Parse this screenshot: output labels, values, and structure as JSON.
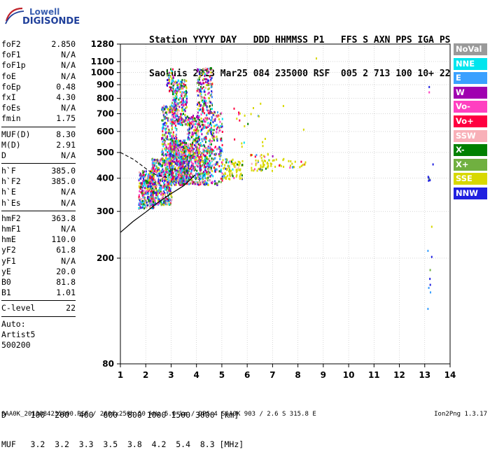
{
  "logo": {
    "line1": "Lowell",
    "line2": "DIGISONDE"
  },
  "header": {
    "line1": "Station YYYY DAY   DDD HHMMSS P1   FFS S AXN PPS IGA PS",
    "line2": "SaoLuis 2013 Mar25 084 235000 RSF  005 2 713 100 10+ 22"
  },
  "params": [
    [
      {
        "k": "foF2",
        "v": "2.850"
      },
      {
        "k": "foF1",
        "v": "N/A"
      },
      {
        "k": "foF1p",
        "v": "N/A"
      },
      {
        "k": "foE",
        "v": "N/A"
      },
      {
        "k": "foEp",
        "v": "0.48"
      },
      {
        "k": "fxI",
        "v": "4.30"
      },
      {
        "k": "foEs",
        "v": "N/A"
      },
      {
        "k": "fmin",
        "v": "1.75"
      }
    ],
    [
      {
        "k": "MUF(D)",
        "v": "8.30"
      },
      {
        "k": "M(D)",
        "v": "2.91"
      },
      {
        "k": "D",
        "v": "N/A"
      }
    ],
    [
      {
        "k": "h`F",
        "v": "385.0"
      },
      {
        "k": "h`F2",
        "v": "385.0"
      },
      {
        "k": "h`E",
        "v": "N/A"
      },
      {
        "k": "h`Es",
        "v": "N/A"
      }
    ],
    [
      {
        "k": "hmF2",
        "v": "363.8"
      },
      {
        "k": "hmF1",
        "v": "N/A"
      },
      {
        "k": "hmE",
        "v": "110.0"
      },
      {
        "k": "yF2",
        "v": "61.8"
      },
      {
        "k": "yF1",
        "v": "N/A"
      },
      {
        "k": "yE",
        "v": "20.0"
      },
      {
        "k": "B0",
        "v": "81.8"
      },
      {
        "k": "B1",
        "v": "1.01"
      }
    ],
    [
      {
        "k": "C-level",
        "v": "22"
      }
    ],
    [
      {
        "k": "Auto:",
        "v": ""
      },
      {
        "k": "Artist5",
        "v": ""
      },
      {
        "k": "500200",
        "v": ""
      }
    ]
  ],
  "legend": [
    {
      "label": "NoVal",
      "color": "#9a9a9a"
    },
    {
      "label": "NNE",
      "color": "#00e5ee"
    },
    {
      "label": "E",
      "color": "#3aa0ff"
    },
    {
      "label": "W",
      "color": "#a000b0"
    },
    {
      "label": "Vo-",
      "color": "#ff40c0"
    },
    {
      "label": "Vo+",
      "color": "#ff0040"
    },
    {
      "label": "SSW",
      "color": "#f8b0b8"
    },
    {
      "label": "X-",
      "color": "#008000"
    },
    {
      "label": "X+",
      "color": "#70b040"
    },
    {
      "label": "SSE",
      "color": "#d8d800"
    },
    {
      "label": "NNW",
      "color": "#2020e0"
    }
  ],
  "bottom": {
    "d_line": "D     100  200  400  600  800 1000 1500 3000 [km]",
    "muf_line": "MUF   3.2  3.2  3.3  3.5  3.8  4.2  5.4  8.3 [MHz]"
  },
  "footer": {
    "left": "SAA0K_2013084235000.RSF / 260fx256h 50 kHz 5.0 km / DPS-4 SAA0K 903 / 2.6 S 315.8 E",
    "right": "Ion2Png 1.3.17"
  },
  "chart_data": {
    "type": "scatter",
    "title": "",
    "xlabel": "",
    "ylabel": "",
    "xlim": [
      1,
      14
    ],
    "ylim": [
      80,
      1280
    ],
    "y_scale": "log",
    "x_ticks": [
      1,
      2,
      3,
      4,
      5,
      6,
      7,
      8,
      9,
      10,
      11,
      12,
      13,
      14
    ],
    "y_ticks": [
      80,
      200,
      300,
      400,
      500,
      600,
      700,
      800,
      900,
      1000,
      1100,
      1280
    ],
    "grid": true,
    "legend_position": "right",
    "clusters": [
      {
        "x": [
          1.7,
          2.3
        ],
        "y": [
          310,
          430
        ],
        "n": 320
      },
      {
        "x": [
          2.2,
          3.0
        ],
        "y": [
          320,
          480
        ],
        "n": 500
      },
      {
        "x": [
          2.9,
          3.6
        ],
        "y": [
          380,
          560
        ],
        "n": 500
      },
      {
        "x": [
          3.3,
          4.5
        ],
        "y": [
          380,
          520
        ],
        "n": 450
      },
      {
        "x": [
          2.6,
          3.2
        ],
        "y": [
          450,
          760
        ],
        "n": 260
      },
      {
        "x": [
          3.0,
          3.6
        ],
        "y": [
          640,
          950
        ],
        "n": 260
      },
      {
        "x": [
          3.6,
          4.1
        ],
        "y": [
          480,
          700
        ],
        "n": 180
      },
      {
        "x": [
          4.0,
          4.6
        ],
        "y": [
          500,
          1050
        ],
        "n": 320
      },
      {
        "x": [
          4.5,
          5.0
        ],
        "y": [
          380,
          720
        ],
        "n": 180
      },
      {
        "x": [
          2.8,
          3.1
        ],
        "y": [
          850,
          1040
        ],
        "n": 40
      },
      {
        "x": [
          5.0,
          5.8
        ],
        "y": [
          400,
          480
        ],
        "n": 90
      },
      {
        "x": [
          6.1,
          7.0
        ],
        "y": [
          430,
          500
        ],
        "n": 60
      },
      {
        "x": [
          7.0,
          8.3
        ],
        "y": [
          440,
          480
        ],
        "n": 25
      },
      {
        "x": [
          5.3,
          6.8
        ],
        "y": [
          530,
          760
        ],
        "n": 20
      },
      {
        "x": [
          13.1,
          13.3
        ],
        "y": [
          380,
          410
        ],
        "n": 6
      },
      {
        "x": [
          13.1,
          13.3
        ],
        "y": [
          140,
          220
        ],
        "n": 5
      }
    ],
    "sparse_points": [
      {
        "x": 8.7,
        "y": 1140,
        "color": "#d8d800"
      },
      {
        "x": 13.15,
        "y": 890,
        "color": "#2020e0"
      },
      {
        "x": 13.15,
        "y": 850,
        "color": "#ff40c0"
      },
      {
        "x": 13.3,
        "y": 455,
        "color": "#2020e0"
      },
      {
        "x": 13.25,
        "y": 265,
        "color": "#d8d800"
      },
      {
        "x": 7.4,
        "y": 755,
        "color": "#d8d800"
      },
      {
        "x": 6.5,
        "y": 770,
        "color": "#d8d800"
      },
      {
        "x": 8.2,
        "y": 615,
        "color": "#d8d800"
      },
      {
        "x": 13.1,
        "y": 215,
        "color": "#3aa0ff"
      },
      {
        "x": 13.1,
        "y": 130,
        "color": "#3aa0ff"
      },
      {
        "x": 13.2,
        "y": 150,
        "color": "#3aa0ff"
      }
    ],
    "profile_solid": [
      [
        1,
        250
      ],
      [
        1.5,
        275
      ],
      [
        2.0,
        298
      ],
      [
        2.5,
        325
      ],
      [
        3.0,
        350
      ],
      [
        3.5,
        375
      ],
      [
        3.95,
        412
      ]
    ],
    "profile_dashed": [
      [
        1,
        500
      ],
      [
        1.5,
        472
      ],
      [
        1.8,
        450
      ],
      [
        2.1,
        428
      ],
      [
        2.4,
        412
      ],
      [
        2.85,
        403
      ]
    ]
  }
}
